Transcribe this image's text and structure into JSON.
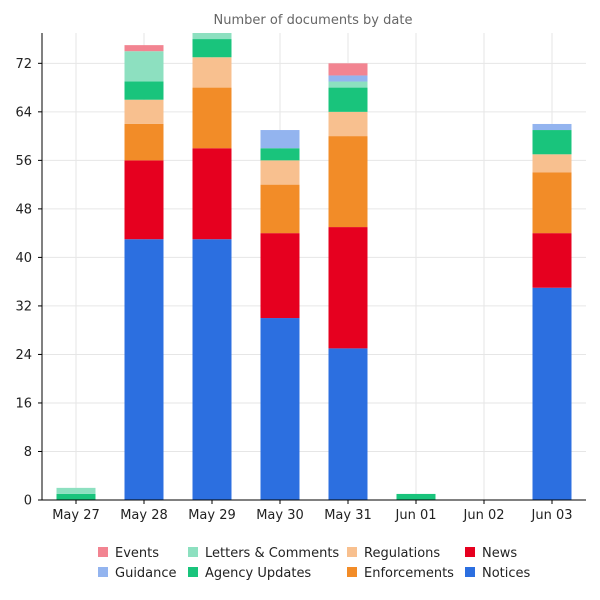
{
  "chart_data": {
    "type": "bar",
    "stacked": true,
    "title": "Number of documents by date",
    "xlabel": "",
    "ylabel": "",
    "ylim": [
      0,
      77
    ],
    "yticks": [
      0,
      8,
      16,
      24,
      32,
      40,
      48,
      56,
      64,
      72
    ],
    "grid": true,
    "legend_position": "bottom",
    "categories": [
      "May 27",
      "May 28",
      "May 29",
      "May 30",
      "May 31",
      "Jun 01",
      "Jun 02",
      "Jun 03"
    ],
    "series": [
      {
        "name": "Notices",
        "color": "#2c6fe0",
        "values": [
          0,
          43,
          43,
          30,
          25,
          0,
          0,
          35
        ]
      },
      {
        "name": "News",
        "color": "#e6001f",
        "values": [
          0,
          13,
          15,
          14,
          20,
          0,
          0,
          9
        ]
      },
      {
        "name": "Enforcements",
        "color": "#f28c28",
        "values": [
          0,
          6,
          10,
          8,
          15,
          0,
          0,
          10
        ]
      },
      {
        "name": "Regulations",
        "color": "#f8c08f",
        "values": [
          0,
          4,
          5,
          4,
          4,
          0,
          0,
          3
        ]
      },
      {
        "name": "Agency Updates",
        "color": "#19c47c",
        "values": [
          1,
          3,
          3,
          2,
          4,
          1,
          0,
          4
        ]
      },
      {
        "name": "Letters & Comments",
        "color": "#8de0c0",
        "values": [
          1,
          5,
          1,
          0,
          1,
          0,
          0,
          0
        ]
      },
      {
        "name": "Guidance",
        "color": "#93b4ef",
        "values": [
          0,
          0,
          0,
          3,
          1,
          0,
          0,
          1
        ]
      },
      {
        "name": "Events",
        "color": "#f28491",
        "values": [
          0,
          1,
          0,
          0,
          2,
          0,
          0,
          0
        ]
      }
    ],
    "legend_order": [
      "Events",
      "Letters & Comments",
      "Regulations",
      "News",
      "Guidance",
      "Agency Updates",
      "Enforcements",
      "Notices"
    ]
  }
}
